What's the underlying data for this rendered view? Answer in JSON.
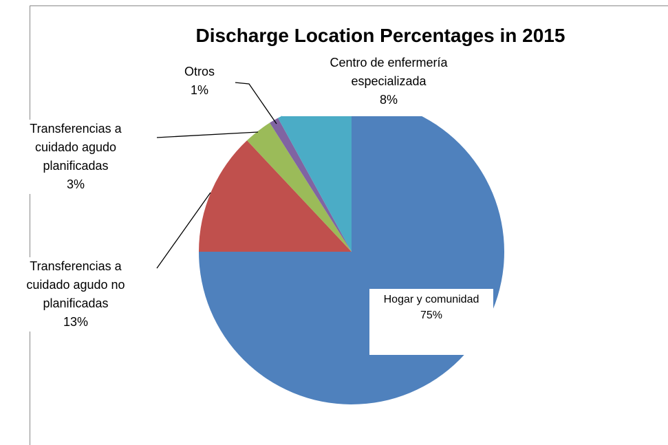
{
  "chart_data": {
    "type": "pie",
    "title": "Discharge Location Percentages in 2015",
    "categories": [
      "Hogar y comunidad",
      "Transferencias a cuidado agudo no planificadas",
      "Transferencias a cuidado agudo planificadas",
      "Otros",
      "Centro de enfermería especializada"
    ],
    "values": [
      75,
      13,
      3,
      1,
      8
    ],
    "value_labels": [
      "75%",
      "13%",
      "3%",
      "1%",
      "8%"
    ],
    "colors": [
      "#4f81bd",
      "#c0504d",
      "#9bbb59",
      "#8064a2",
      "#4bacc6"
    ]
  }
}
